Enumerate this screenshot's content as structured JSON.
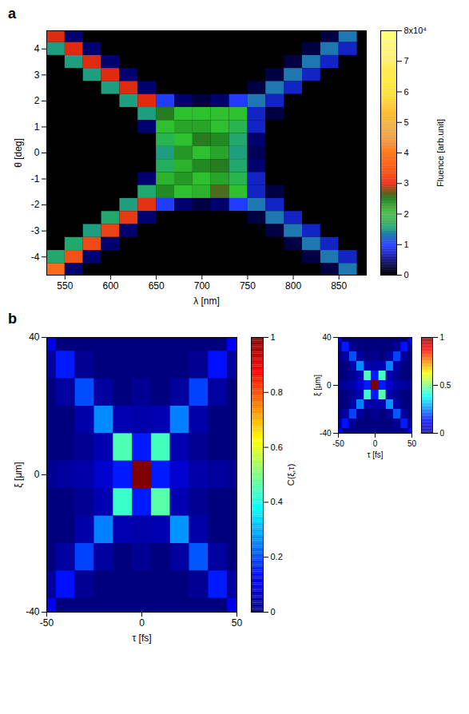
{
  "chart_data": [
    {
      "type": "heatmap",
      "panel": "a",
      "x_label": "λ [nm]",
      "y_label": "θ [deg]",
      "x": [
        540,
        560,
        580,
        600,
        620,
        640,
        660,
        680,
        700,
        720,
        740,
        760,
        780,
        800,
        820,
        840,
        860
      ],
      "y": [
        4.5,
        4,
        3.5,
        3,
        2.5,
        2,
        1.5,
        1,
        0.5,
        0,
        -0.5,
        -1,
        -1.5,
        -2,
        -2.5,
        -3,
        -3.5,
        -4,
        -4.5
      ],
      "values": [
        [
          3,
          0.5,
          0,
          0,
          0,
          0,
          0,
          0,
          0,
          0,
          0,
          0,
          0,
          0,
          0,
          0.3,
          1.3
        ],
        [
          1.5,
          3,
          0.5,
          0,
          0,
          0,
          0,
          0,
          0,
          0,
          0,
          0,
          0,
          0,
          0.3,
          1.3,
          0.8
        ],
        [
          0,
          1.5,
          3,
          0.5,
          0,
          0,
          0,
          0,
          0,
          0,
          0,
          0,
          0,
          0.3,
          1.3,
          0.8,
          0
        ],
        [
          0,
          0,
          1.5,
          3,
          0.5,
          0,
          0,
          0,
          0,
          0,
          0,
          0,
          0.3,
          1.3,
          0.8,
          0,
          0
        ],
        [
          0,
          0,
          0,
          1.5,
          3,
          0.5,
          0,
          0,
          0,
          0,
          0,
          0.3,
          1.3,
          0.8,
          0,
          0,
          0
        ],
        [
          0,
          0,
          0,
          0,
          1.5,
          3,
          1,
          0.5,
          0.3,
          0.5,
          1,
          1.3,
          0.8,
          0,
          0,
          0,
          0
        ],
        [
          0,
          0,
          0,
          0,
          0,
          1.5,
          2.5,
          2,
          2,
          2,
          2,
          0.8,
          0.3,
          0,
          0,
          0,
          0
        ],
        [
          0,
          0,
          0,
          0,
          0,
          0.5,
          2,
          2.2,
          2.2,
          2,
          1.8,
          0.8,
          0,
          0,
          0,
          0,
          0
        ],
        [
          0,
          0,
          0,
          0,
          0,
          0,
          1.8,
          2,
          2.5,
          2.4,
          1.6,
          0.5,
          0,
          0,
          0,
          0,
          0
        ],
        [
          0,
          0,
          0,
          0,
          0,
          0,
          1.5,
          2.3,
          2,
          2.2,
          1.5,
          0.4,
          0,
          0,
          0,
          0,
          0
        ],
        [
          0,
          0,
          0,
          0,
          0,
          0,
          1.7,
          2.1,
          2.4,
          2.5,
          1.6,
          0.5,
          0,
          0,
          0,
          0,
          0
        ],
        [
          0,
          0,
          0,
          0,
          0,
          0.5,
          2.1,
          2.3,
          2,
          2.2,
          1.8,
          0.8,
          0,
          0,
          0,
          0,
          0
        ],
        [
          0,
          0,
          0,
          0,
          0,
          1.6,
          2.4,
          2,
          2.1,
          2.6,
          2,
          0.8,
          0.3,
          0,
          0,
          0,
          0
        ],
        [
          0,
          0,
          0,
          0,
          1.5,
          3.1,
          1,
          0.5,
          0.3,
          0.5,
          1,
          1.3,
          0.8,
          0,
          0,
          0,
          0
        ],
        [
          0,
          0,
          0,
          1.6,
          3.2,
          0.5,
          0,
          0,
          0,
          0,
          0,
          0.3,
          1.3,
          0.8,
          0,
          0,
          0
        ],
        [
          0,
          0,
          1.5,
          3.3,
          0.5,
          0,
          0,
          0,
          0,
          0,
          0,
          0,
          0.3,
          1.3,
          0.8,
          0,
          0
        ],
        [
          0,
          1.6,
          3.4,
          0.5,
          0,
          0,
          0,
          0,
          0,
          0,
          0,
          0,
          0,
          0.3,
          1.3,
          0.8,
          0
        ],
        [
          1.6,
          3.5,
          0.5,
          0,
          0,
          0,
          0,
          0,
          0,
          0,
          0,
          0,
          0,
          0,
          0.3,
          1.3,
          0.8
        ],
        [
          3.8,
          0.5,
          0,
          0,
          0,
          0,
          0,
          0,
          0,
          0,
          0,
          0,
          0,
          0,
          0,
          0.3,
          1.3
        ]
      ],
      "xlim": [
        530,
        880
      ],
      "xticks": [
        550,
        600,
        650,
        700,
        750,
        800,
        850
      ],
      "ylim": [
        -4.7,
        4.7
      ],
      "yticks": [
        -4,
        -3,
        -2,
        -1,
        0,
        1,
        2,
        3,
        4
      ],
      "colorbar": {
        "label": "Fluence [arb.unit]",
        "lim": [
          0,
          8
        ],
        "ticks": [
          0,
          1,
          2,
          3,
          4,
          5,
          6,
          7,
          {
            "value": 8,
            "label": "8x10⁴"
          }
        ]
      }
    },
    {
      "type": "heatmap",
      "panel": "b",
      "x_label": "τ [fs]",
      "y_label": "ξ [μm]",
      "x": [
        -50,
        -40,
        -30,
        -20,
        -10,
        0,
        10,
        20,
        30,
        40,
        50
      ],
      "y": [
        40,
        32,
        24,
        16,
        8,
        0,
        -8,
        -16,
        -24,
        -32,
        -40
      ],
      "values": [
        [
          0.1,
          0,
          0,
          0,
          0,
          0,
          0,
          0,
          0,
          0,
          0.12
        ],
        [
          0.03,
          0.15,
          0.02,
          0,
          0,
          0,
          0,
          0,
          0.02,
          0.14,
          0.03
        ],
        [
          0,
          0.03,
          0.2,
          0.03,
          0,
          0.02,
          0,
          0.03,
          0.19,
          0.03,
          0
        ],
        [
          0,
          0,
          0.04,
          0.26,
          0.05,
          0.04,
          0.05,
          0.25,
          0.04,
          0,
          0
        ],
        [
          0,
          0,
          0.02,
          0.05,
          0.45,
          0.15,
          0.44,
          0.05,
          0.02,
          0,
          0
        ],
        [
          0.02,
          0.03,
          0.04,
          0.08,
          0.15,
          1,
          0.15,
          0.08,
          0.04,
          0.03,
          0.02
        ],
        [
          0,
          0,
          0.02,
          0.05,
          0.43,
          0.15,
          0.46,
          0.05,
          0.02,
          0,
          0
        ],
        [
          0,
          0,
          0.04,
          0.25,
          0.05,
          0.04,
          0.05,
          0.27,
          0.04,
          0,
          0
        ],
        [
          0,
          0.03,
          0.19,
          0.03,
          0,
          0.02,
          0,
          0.03,
          0.21,
          0.03,
          0
        ],
        [
          0.03,
          0.14,
          0.02,
          0,
          0,
          0,
          0,
          0,
          0.02,
          0.15,
          0.03
        ],
        [
          0.11,
          0,
          0,
          0,
          0,
          0,
          0,
          0,
          0,
          0,
          0.1
        ]
      ],
      "xlim": [
        -50,
        50
      ],
      "xticks": [
        -50,
        0,
        50
      ],
      "ylim": [
        -40,
        40
      ],
      "yticks": [
        -40,
        0,
        40
      ],
      "colorbar": {
        "label": "C(ξ,τ)",
        "lim": [
          0,
          1
        ],
        "ticks": [
          0,
          0.2,
          0.4,
          0.6,
          0.8,
          1
        ]
      }
    },
    {
      "type": "heatmap",
      "x_label": "τ [fs]",
      "y_label": "ξ [μm]",
      "x": [
        -50,
        -40,
        -30,
        -20,
        -10,
        0,
        10,
        20,
        30,
        40,
        50
      ],
      "y": [
        40,
        32,
        24,
        16,
        8,
        0,
        -8,
        -16,
        -24,
        -32,
        -40
      ],
      "values": [
        [
          0.1,
          0,
          0,
          0,
          0,
          0,
          0,
          0,
          0,
          0,
          0.12
        ],
        [
          0.03,
          0.15,
          0.02,
          0,
          0,
          0,
          0,
          0,
          0.02,
          0.14,
          0.03
        ],
        [
          0,
          0.03,
          0.2,
          0.03,
          0,
          0.02,
          0,
          0.03,
          0.19,
          0.03,
          0
        ],
        [
          0,
          0,
          0.04,
          0.26,
          0.05,
          0.04,
          0.05,
          0.25,
          0.04,
          0,
          0
        ],
        [
          0,
          0,
          0.02,
          0.05,
          0.45,
          0.15,
          0.44,
          0.05,
          0.02,
          0,
          0
        ],
        [
          0.02,
          0.03,
          0.04,
          0.08,
          0.15,
          1,
          0.15,
          0.08,
          0.04,
          0.03,
          0.02
        ],
        [
          0,
          0,
          0.02,
          0.05,
          0.43,
          0.15,
          0.46,
          0.05,
          0.02,
          0,
          0
        ],
        [
          0,
          0,
          0.04,
          0.25,
          0.05,
          0.04,
          0.05,
          0.27,
          0.04,
          0,
          0
        ],
        [
          0,
          0.03,
          0.19,
          0.03,
          0,
          0.02,
          0,
          0.03,
          0.21,
          0.03,
          0
        ],
        [
          0.03,
          0.14,
          0.02,
          0,
          0,
          0,
          0,
          0,
          0.02,
          0.15,
          0.03
        ],
        [
          0.11,
          0,
          0,
          0,
          0,
          0,
          0,
          0,
          0,
          0,
          0.1
        ]
      ],
      "xlim": [
        -50,
        50
      ],
      "xticks": [
        -50,
        0,
        50
      ],
      "ylim": [
        -40,
        40
      ],
      "yticks": [
        -40,
        0,
        40
      ],
      "colorbar": {
        "lim": [
          0,
          1
        ],
        "ticks": [
          0,
          0.5,
          1
        ]
      }
    }
  ]
}
